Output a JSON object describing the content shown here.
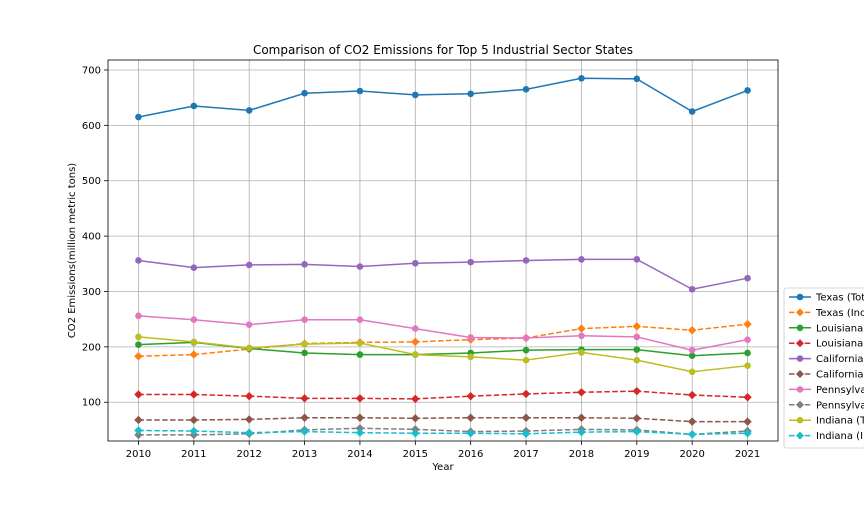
{
  "chart_data": {
    "type": "line",
    "title": "Comparison of CO2 Emissions for Top 5 Industrial Sector States",
    "xlabel": "Year",
    "ylabel": "CO2 Emissions(million metric tons)",
    "x": [
      2010,
      2011,
      2012,
      2013,
      2014,
      2015,
      2016,
      2017,
      2018,
      2019,
      2020,
      2021
    ],
    "xlim": [
      2009.45,
      2021.55
    ],
    "ylim": [
      30,
      718
    ],
    "yticks": [
      100,
      200,
      300,
      400,
      500,
      600,
      700
    ],
    "grid": true,
    "legend_position": "right",
    "series": [
      {
        "name": "Texas (Tot",
        "color": "#1f77b4",
        "dashed": false,
        "marker": "circle",
        "values": [
          615,
          635,
          627,
          658,
          662,
          655,
          657,
          665,
          685,
          684,
          625,
          663
        ]
      },
      {
        "name": "Texas (Inc",
        "color": "#ff7f0e",
        "dashed": true,
        "marker": "diamond",
        "values": [
          183,
          186,
          196,
          206,
          208,
          209,
          213,
          216,
          233,
          237,
          230,
          241
        ]
      },
      {
        "name": "Louisiana",
        "color": "#2ca02c",
        "dashed": false,
        "marker": "circle",
        "values": [
          204,
          208,
          197,
          189,
          186,
          186,
          189,
          194,
          195,
          195,
          184,
          189
        ]
      },
      {
        "name": "Louisiana",
        "color": "#d62728",
        "dashed": true,
        "marker": "diamond",
        "values": [
          114,
          114,
          111,
          107,
          107,
          106,
          111,
          115,
          118,
          120,
          113,
          109
        ]
      },
      {
        "name": "California",
        "color": "#9467bd",
        "dashed": false,
        "marker": "circle",
        "values": [
          356,
          343,
          348,
          349,
          345,
          351,
          353,
          356,
          358,
          358,
          304,
          324
        ]
      },
      {
        "name": "California",
        "color": "#8c564b",
        "dashed": true,
        "marker": "diamond",
        "values": [
          68,
          68,
          69,
          72,
          72,
          71,
          72,
          72,
          72,
          71,
          65,
          65
        ]
      },
      {
        "name": "Pennsylva",
        "color": "#e377c2",
        "dashed": false,
        "marker": "circle",
        "values": [
          256,
          249,
          240,
          249,
          249,
          233,
          217,
          216,
          220,
          218,
          194,
          213
        ]
      },
      {
        "name": "Pennsylva",
        "color": "#7f7f7f",
        "dashed": true,
        "marker": "diamond",
        "values": [
          41,
          41,
          43,
          50,
          53,
          51,
          47,
          48,
          51,
          50,
          42,
          48
        ]
      },
      {
        "name": "Indiana (T",
        "color": "#bcbd22",
        "dashed": false,
        "marker": "circle",
        "values": [
          218,
          209,
          198,
          205,
          207,
          186,
          182,
          176,
          190,
          176,
          155,
          166
        ]
      },
      {
        "name": "Indiana (I",
        "color": "#17becf",
        "dashed": true,
        "marker": "diamond",
        "values": [
          49,
          48,
          45,
          47,
          45,
          44,
          44,
          43,
          46,
          47,
          42,
          44
        ]
      }
    ]
  }
}
